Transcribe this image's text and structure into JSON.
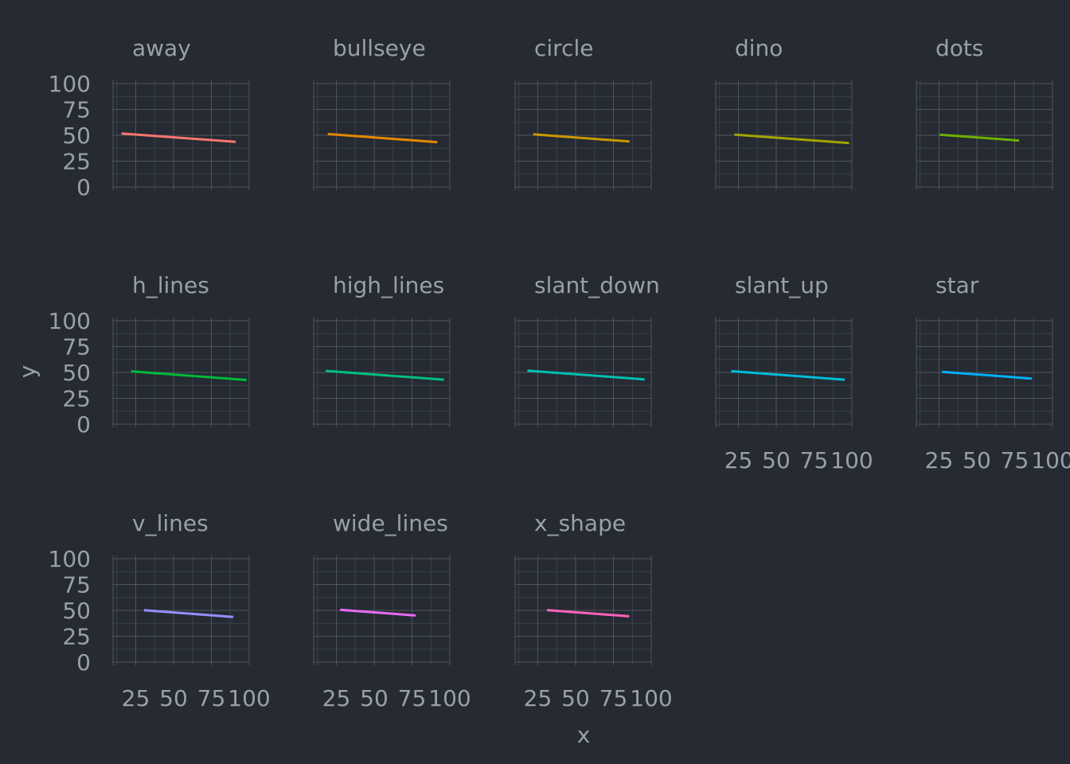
{
  "colors": {
    "background": "#252a33",
    "panel_background": "#252a33",
    "grid_major": "#4e545d",
    "grid_minor": "#3b4049",
    "text": "#9aa0a8"
  },
  "chart_data": {
    "type": "line",
    "layout": "facet_wrap 5 columns x 3 rows",
    "xlabel": "x",
    "ylabel": "y",
    "xlim": [
      10,
      100
    ],
    "ylim": [
      0,
      100
    ],
    "x_ticks": [
      25,
      50,
      75,
      100
    ],
    "y_ticks": [
      0,
      25,
      50,
      75,
      100
    ],
    "grid": "major and minor",
    "panels": [
      {
        "name": "away",
        "color": "#f8766d",
        "x": [
          15.6,
          91.1
        ],
        "y": [
          51.8,
          43.7
        ]
      },
      {
        "name": "bullseye",
        "color": "#e58700",
        "x": [
          19.3,
          91.7
        ],
        "y": [
          51.2,
          43.4
        ]
      },
      {
        "name": "circle",
        "color": "#c99800",
        "x": [
          21.9,
          85.7
        ],
        "y": [
          50.9,
          44.0
        ]
      },
      {
        "name": "dino",
        "color": "#a3a500",
        "x": [
          22.3,
          98.2
        ],
        "y": [
          50.7,
          42.5
        ]
      },
      {
        "name": "dots",
        "color": "#6bb100",
        "x": [
          25.4,
          77.9
        ],
        "y": [
          50.6,
          44.9
        ]
      },
      {
        "name": "h_lines",
        "color": "#00ba38",
        "x": [
          22.0,
          98.3
        ],
        "y": [
          51.1,
          42.7
        ]
      },
      {
        "name": "high_lines",
        "color": "#00bf7d",
        "x": [
          17.9,
          96.1
        ],
        "y": [
          51.5,
          43.0
        ]
      },
      {
        "name": "slant_down",
        "color": "#00c0af",
        "x": [
          18.1,
          95.6
        ],
        "y": [
          51.7,
          43.3
        ]
      },
      {
        "name": "slant_up",
        "color": "#00bcd8",
        "x": [
          20.2,
          95.3
        ],
        "y": [
          51.2,
          43.0
        ]
      },
      {
        "name": "star",
        "color": "#00b0f6",
        "x": [
          27.0,
          86.4
        ],
        "y": [
          50.6,
          44.1
        ]
      },
      {
        "name": "v_lines",
        "color": "#9590ff",
        "x": [
          30.5,
          89.5
        ],
        "y": [
          50.2,
          43.7
        ]
      },
      {
        "name": "wide_lines",
        "color": "#e76bf3",
        "x": [
          27.4,
          77.4
        ],
        "y": [
          50.6,
          45.1
        ]
      },
      {
        "name": "x_shape",
        "color": "#ff62bc",
        "x": [
          31.1,
          85.4
        ],
        "y": [
          50.3,
          44.3
        ]
      }
    ]
  }
}
